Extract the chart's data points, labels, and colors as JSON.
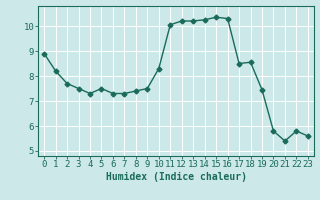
{
  "x": [
    0,
    1,
    2,
    3,
    4,
    5,
    6,
    7,
    8,
    9,
    10,
    11,
    12,
    13,
    14,
    15,
    16,
    17,
    18,
    19,
    20,
    21,
    22,
    23
  ],
  "y": [
    8.9,
    8.2,
    7.7,
    7.5,
    7.3,
    7.5,
    7.3,
    7.3,
    7.4,
    7.5,
    8.3,
    10.05,
    10.2,
    10.2,
    10.25,
    10.35,
    10.3,
    8.5,
    8.55,
    7.45,
    5.8,
    5.4,
    5.8,
    5.6
  ],
  "line_color": "#1a6b5a",
  "marker": "D",
  "markersize": 2.5,
  "linewidth": 1.0,
  "xlabel": "Humidex (Indice chaleur)",
  "xlim": [
    -0.5,
    23.5
  ],
  "ylim": [
    4.8,
    10.8
  ],
  "yticks": [
    5,
    6,
    7,
    8,
    9,
    10
  ],
  "xticks": [
    0,
    1,
    2,
    3,
    4,
    5,
    6,
    7,
    8,
    9,
    10,
    11,
    12,
    13,
    14,
    15,
    16,
    17,
    18,
    19,
    20,
    21,
    22,
    23
  ],
  "xtick_labels": [
    "0",
    "1",
    "2",
    "3",
    "4",
    "5",
    "6",
    "7",
    "8",
    "9",
    "10",
    "11",
    "12",
    "13",
    "14",
    "15",
    "16",
    "17",
    "18",
    "19",
    "20",
    "21",
    "22",
    "23"
  ],
  "bg_color": "#cce8e8",
  "grid_color": "#e8f8f8",
  "tick_color": "#1a6b5a",
  "label_color": "#1a6b5a",
  "xlabel_fontsize": 7,
  "tick_fontsize": 6.5
}
